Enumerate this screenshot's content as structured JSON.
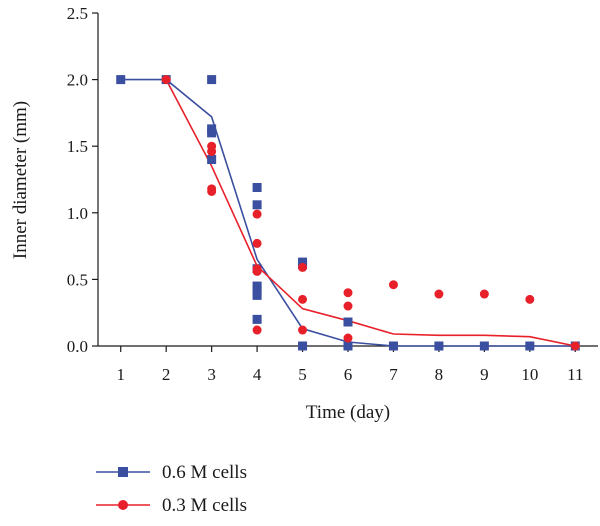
{
  "chart_data": {
    "type": "line",
    "xlabel": "Time (day)",
    "ylabel": "Inner diameter (mm)",
    "xlim": [
      0.5,
      11.5
    ],
    "ylim": [
      0,
      2.5
    ],
    "x_ticks": [
      "1",
      "2",
      "3",
      "4",
      "5",
      "6",
      "7",
      "8",
      "9",
      "10",
      "11"
    ],
    "y_ticks": [
      "0.0",
      "0.5",
      "1.0",
      "1.5",
      "2.0",
      "2.5"
    ],
    "grid": false,
    "legend_position": "bottom-left",
    "series": [
      {
        "name": "0.6 M cells",
        "color": "#3a4fa0",
        "marker": "square",
        "line": [
          [
            1,
            2.0
          ],
          [
            2,
            2.0
          ],
          [
            3,
            1.72
          ],
          [
            4,
            0.65
          ],
          [
            5,
            0.13
          ],
          [
            6,
            0.03
          ],
          [
            7,
            0.0
          ],
          [
            8,
            0.0
          ],
          [
            9,
            0.0
          ],
          [
            10,
            0.0
          ],
          [
            11,
            0.0
          ]
        ],
        "points": [
          [
            1,
            2.0
          ],
          [
            2,
            2.0
          ],
          [
            3,
            2.0
          ],
          [
            3,
            1.63
          ],
          [
            3,
            1.6
          ],
          [
            3,
            1.4
          ],
          [
            4,
            1.19
          ],
          [
            4,
            1.06
          ],
          [
            4,
            0.58
          ],
          [
            4,
            0.45
          ],
          [
            4,
            0.42
          ],
          [
            4,
            0.38
          ],
          [
            4,
            0.2
          ],
          [
            5,
            0.63
          ],
          [
            5,
            0.61
          ],
          [
            5,
            0.0
          ],
          [
            6,
            0.18
          ],
          [
            6,
            0.0
          ],
          [
            7,
            0.0
          ],
          [
            8,
            0.0
          ],
          [
            9,
            0.0
          ],
          [
            10,
            0.0
          ],
          [
            11,
            0.0
          ]
        ]
      },
      {
        "name": "0.3 M cells",
        "color": "#e8202a",
        "marker": "circle",
        "line": [
          [
            2,
            2.0
          ],
          [
            3,
            1.35
          ],
          [
            4,
            0.6
          ],
          [
            5,
            0.28
          ],
          [
            6,
            0.19
          ],
          [
            7,
            0.09
          ],
          [
            8,
            0.08
          ],
          [
            9,
            0.08
          ],
          [
            10,
            0.07
          ],
          [
            11,
            0.0
          ]
        ],
        "points": [
          [
            2,
            2.0
          ],
          [
            3,
            1.5
          ],
          [
            3,
            1.46
          ],
          [
            3,
            1.18
          ],
          [
            3,
            1.16
          ],
          [
            4,
            0.99
          ],
          [
            4,
            0.77
          ],
          [
            4,
            0.58
          ],
          [
            4,
            0.56
          ],
          [
            4,
            0.12
          ],
          [
            5,
            0.59
          ],
          [
            5,
            0.35
          ],
          [
            5,
            0.12
          ],
          [
            6,
            0.4
          ],
          [
            6,
            0.3
          ],
          [
            6,
            0.06
          ],
          [
            7,
            0.46
          ],
          [
            8,
            0.39
          ],
          [
            9,
            0.39
          ],
          [
            10,
            0.35
          ],
          [
            11,
            0.0
          ]
        ]
      }
    ]
  }
}
